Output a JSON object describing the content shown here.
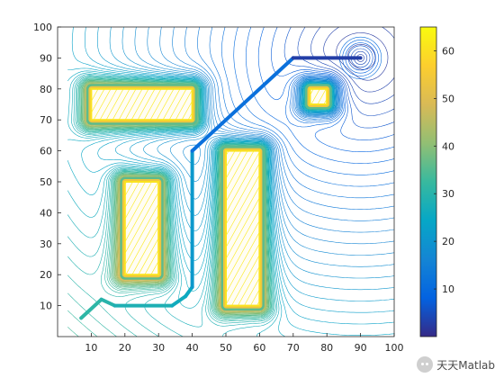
{
  "chart_data": {
    "type": "contour",
    "title": "",
    "xlabel": "",
    "ylabel": "",
    "xlim": [
      0,
      100
    ],
    "ylim": [
      0,
      100
    ],
    "xticks": [
      10,
      20,
      30,
      40,
      50,
      60,
      70,
      80,
      90,
      100
    ],
    "yticks": [
      10,
      20,
      30,
      40,
      50,
      60,
      70,
      80,
      90,
      100
    ],
    "colorbar": {
      "range": [
        0,
        65
      ],
      "ticks": [
        10,
        20,
        30,
        40,
        50,
        60
      ],
      "colormap": "parula"
    },
    "obstacles": [
      {
        "x1": 10,
        "x2": 40,
        "y1": 70,
        "y2": 80
      },
      {
        "x1": 20,
        "x2": 30,
        "y1": 20,
        "y2": 50
      },
      {
        "x1": 50,
        "x2": 60,
        "y1": 10,
        "y2": 60
      },
      {
        "x1": 75,
        "x2": 80,
        "y1": 75,
        "y2": 80
      }
    ],
    "goal": {
      "x": 90,
      "y": 90
    },
    "path": [
      {
        "x": 7,
        "y": 6
      },
      {
        "x": 13,
        "y": 12
      },
      {
        "x": 17,
        "y": 10
      },
      {
        "x": 34,
        "y": 10
      },
      {
        "x": 38,
        "y": 13
      },
      {
        "x": 40,
        "y": 16
      },
      {
        "x": 40,
        "y": 60
      },
      {
        "x": 70,
        "y": 90
      },
      {
        "x": 90,
        "y": 90
      }
    ]
  },
  "watermark": {
    "text": "天天Matlab"
  },
  "colors": {
    "parula": [
      "#352a87",
      "#0363e1",
      "#1485d4",
      "#06a7c6",
      "#38b99e",
      "#92bf73",
      "#d9ba56",
      "#fcce2e",
      "#f9fb0e"
    ]
  }
}
